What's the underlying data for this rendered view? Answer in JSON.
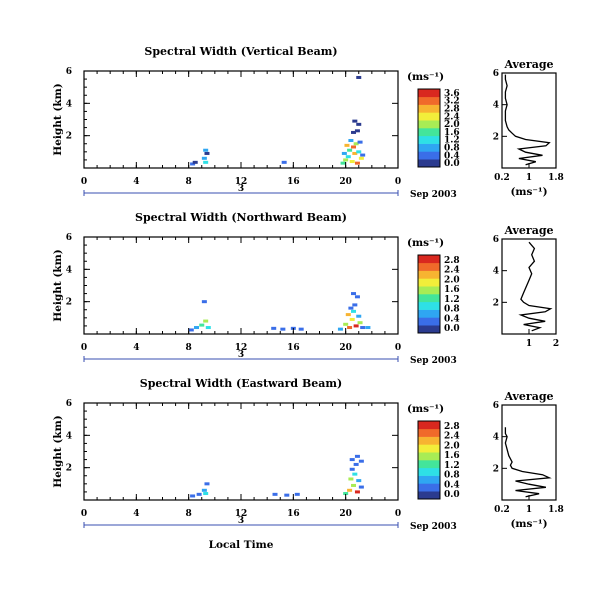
{
  "figure": {
    "date_label": "Sep 2003",
    "day_label": "3",
    "xlabel": "Local Time",
    "unit_label": "(ms⁻¹)",
    "avg_title": "Average",
    "avg_xlabel": "(ms⁻¹)",
    "colormap": [
      "#2b3b8f",
      "#3a6ee8",
      "#2fa6f2",
      "#2ee0e6",
      "#43e59b",
      "#a8ec55",
      "#f2ee3a",
      "#f7b431",
      "#f06a2a",
      "#d9281f"
    ]
  },
  "chart_data": [
    {
      "type": "heatmap",
      "title": "Spectral Width (Vertical Beam)",
      "xlabel": "Local Time",
      "ylabel": "Height (km)",
      "xlim": [
        0,
        24
      ],
      "ylim": [
        0,
        6
      ],
      "xticks": [
        "0",
        "4",
        "8",
        "12",
        "16",
        "20",
        "0"
      ],
      "yticks": [
        "2",
        "4",
        "6"
      ],
      "colorbar": {
        "ticks": [
          "0.0",
          "0.4",
          "0.8",
          "1.2",
          "1.6",
          "2.0",
          "2.4",
          "2.8",
          "3.2",
          "3.6"
        ],
        "range": [
          0,
          3.6
        ]
      },
      "cells": [
        [
          8.3,
          0.25,
          0.4
        ],
        [
          8.5,
          0.35,
          0.3
        ],
        [
          9.2,
          0.6,
          0.9
        ],
        [
          9.3,
          0.35,
          1.4
        ],
        [
          9.4,
          0.9,
          0.3
        ],
        [
          9.3,
          1.1,
          1.0
        ],
        [
          15.3,
          0.35,
          0.4
        ],
        [
          19.8,
          0.3,
          1.6
        ],
        [
          20.0,
          0.5,
          2.0
        ],
        [
          20.2,
          0.7,
          1.4
        ],
        [
          20.5,
          0.4,
          2.4
        ],
        [
          20.7,
          0.9,
          2.8
        ],
        [
          20.9,
          0.3,
          3.0
        ],
        [
          19.9,
          0.9,
          0.8
        ],
        [
          20.3,
          1.1,
          1.6
        ],
        [
          20.6,
          1.3,
          3.2
        ],
        [
          21.0,
          1.0,
          1.2
        ],
        [
          21.2,
          0.6,
          2.2
        ],
        [
          21.3,
          0.8,
          0.6
        ],
        [
          20.1,
          1.4,
          2.6
        ],
        [
          20.8,
          1.5,
          1.8
        ],
        [
          21.1,
          1.6,
          0.4
        ],
        [
          20.4,
          1.7,
          1.0
        ],
        [
          20.6,
          2.2,
          0.3
        ],
        [
          20.9,
          2.3,
          0.3
        ],
        [
          21.0,
          2.7,
          0.3
        ],
        [
          20.7,
          2.9,
          0.3
        ],
        [
          21.0,
          5.6,
          0.3
        ]
      ],
      "average": {
        "xlim": [
          0.2,
          1.8
        ],
        "xticks": [
          "0.2",
          "1",
          "1.8"
        ],
        "ylim": [
          0,
          6
        ],
        "yticks": [
          "2",
          "4",
          "6"
        ],
        "height": [
          0.2,
          0.4,
          0.6,
          0.8,
          1.0,
          1.2,
          1.4,
          1.6,
          1.8,
          2.0,
          2.2,
          2.4,
          2.6,
          3.0,
          3.6,
          4.0,
          4.4,
          4.8,
          5.2,
          5.6,
          5.9
        ],
        "width": [
          0.9,
          1.2,
          0.7,
          1.4,
          0.9,
          0.7,
          1.5,
          1.6,
          0.9,
          0.6,
          0.5,
          0.4,
          0.35,
          0.3,
          0.3,
          0.35,
          0.3,
          0.3,
          0.35,
          0.3,
          0.3
        ]
      }
    },
    {
      "type": "heatmap",
      "title": "Spectral Width (Northward Beam)",
      "xlabel": "Local Time",
      "ylabel": "Height (km)",
      "xlim": [
        0,
        24
      ],
      "ylim": [
        0,
        6
      ],
      "xticks": [
        "0",
        "4",
        "8",
        "12",
        "16",
        "20",
        "0"
      ],
      "yticks": [
        "2",
        "4",
        "6"
      ],
      "colorbar": {
        "ticks": [
          "0.0",
          "0.4",
          "0.8",
          "1.2",
          "1.6",
          "2.0",
          "2.4",
          "2.8"
        ],
        "range": [
          0,
          2.8
        ]
      },
      "cells": [
        [
          8.2,
          0.25,
          0.4
        ],
        [
          8.6,
          0.4,
          0.6
        ],
        [
          9.0,
          0.55,
          1.2
        ],
        [
          9.3,
          0.8,
          1.6
        ],
        [
          9.5,
          0.4,
          0.9
        ],
        [
          9.2,
          2.0,
          0.3
        ],
        [
          14.5,
          0.35,
          0.4
        ],
        [
          15.2,
          0.3,
          0.3
        ],
        [
          16.0,
          0.35,
          0.4
        ],
        [
          16.6,
          0.3,
          0.3
        ],
        [
          19.6,
          0.3,
          0.6
        ],
        [
          20.0,
          0.6,
          1.4
        ],
        [
          20.3,
          0.4,
          2.4
        ],
        [
          20.5,
          0.9,
          1.8
        ],
        [
          20.8,
          0.5,
          2.6
        ],
        [
          21.0,
          1.1,
          0.8
        ],
        [
          20.2,
          1.2,
          2.0
        ],
        [
          20.6,
          1.4,
          1.0
        ],
        [
          21.1,
          0.7,
          1.4
        ],
        [
          21.3,
          0.4,
          0.4
        ],
        [
          20.7,
          1.8,
          0.3
        ],
        [
          20.4,
          1.6,
          0.3
        ],
        [
          20.9,
          2.3,
          0.3
        ],
        [
          20.6,
          2.5,
          0.3
        ],
        [
          21.7,
          0.4,
          0.6
        ]
      ],
      "average": {
        "xlim": [
          0,
          2
        ],
        "xticks": [
          "1",
          "2"
        ],
        "ylim": [
          0,
          6
        ],
        "yticks": [
          "2",
          "4",
          "6"
        ],
        "height": [
          0.2,
          0.4,
          0.6,
          0.8,
          1.0,
          1.2,
          1.4,
          1.6,
          1.8,
          2.0,
          2.2,
          2.6,
          3.0,
          3.4,
          3.8,
          4.2,
          4.6,
          5.0,
          5.4,
          5.8
        ],
        "width": [
          1.1,
          1.4,
          0.8,
          1.6,
          1.0,
          0.7,
          1.6,
          1.8,
          1.0,
          0.8,
          0.7,
          0.8,
          0.9,
          1.0,
          1.1,
          1.0,
          1.2,
          1.1,
          1.2,
          1.0
        ]
      }
    },
    {
      "type": "heatmap",
      "title": "Spectral Width (Eastward Beam)",
      "xlabel": "Local Time",
      "ylabel": "Height (km)",
      "xlim": [
        0,
        24
      ],
      "ylim": [
        0,
        6
      ],
      "xticks": [
        "0",
        "4",
        "8",
        "12",
        "16",
        "20",
        "0"
      ],
      "yticks": [
        "2",
        "4",
        "6"
      ],
      "colorbar": {
        "ticks": [
          "0.0",
          "0.4",
          "0.8",
          "1.2",
          "1.6",
          "2.0",
          "2.4",
          "2.8"
        ],
        "range": [
          0,
          2.8
        ]
      },
      "cells": [
        [
          8.3,
          0.25,
          0.4
        ],
        [
          8.8,
          0.35,
          0.4
        ],
        [
          9.2,
          0.6,
          0.6
        ],
        [
          9.4,
          1.0,
          0.3
        ],
        [
          9.3,
          0.4,
          0.9
        ],
        [
          14.6,
          0.35,
          0.4
        ],
        [
          15.5,
          0.3,
          0.3
        ],
        [
          16.3,
          0.35,
          0.4
        ],
        [
          20.0,
          0.4,
          1.2
        ],
        [
          20.3,
          0.6,
          2.2
        ],
        [
          20.6,
          0.9,
          1.6
        ],
        [
          20.9,
          0.5,
          2.6
        ],
        [
          21.0,
          1.2,
          0.8
        ],
        [
          20.4,
          1.3,
          1.4
        ],
        [
          20.7,
          1.6,
          1.0
        ],
        [
          21.2,
          0.8,
          0.5
        ],
        [
          20.5,
          1.9,
          0.3
        ],
        [
          20.8,
          2.2,
          0.3
        ],
        [
          20.5,
          2.5,
          0.3
        ],
        [
          20.9,
          2.7,
          0.3
        ],
        [
          21.2,
          2.4,
          0.3
        ]
      ],
      "average": {
        "xlim": [
          0.2,
          1.8
        ],
        "xticks": [
          "0.2",
          "1",
          "1.8"
        ],
        "ylim": [
          0,
          6
        ],
        "yticks": [
          "2",
          "4",
          "6"
        ],
        "height": [
          0.2,
          0.4,
          0.6,
          0.8,
          1.0,
          1.2,
          1.4,
          1.6,
          1.8,
          2.0,
          2.2,
          2.4,
          2.8,
          3.6,
          4.0,
          4.2,
          4.6
        ],
        "width": [
          0.9,
          1.3,
          0.6,
          1.5,
          1.0,
          0.6,
          1.6,
          1.4,
          0.8,
          0.5,
          0.45,
          0.5,
          0.4,
          0.3,
          0.35,
          0.3,
          0.3
        ]
      }
    }
  ]
}
